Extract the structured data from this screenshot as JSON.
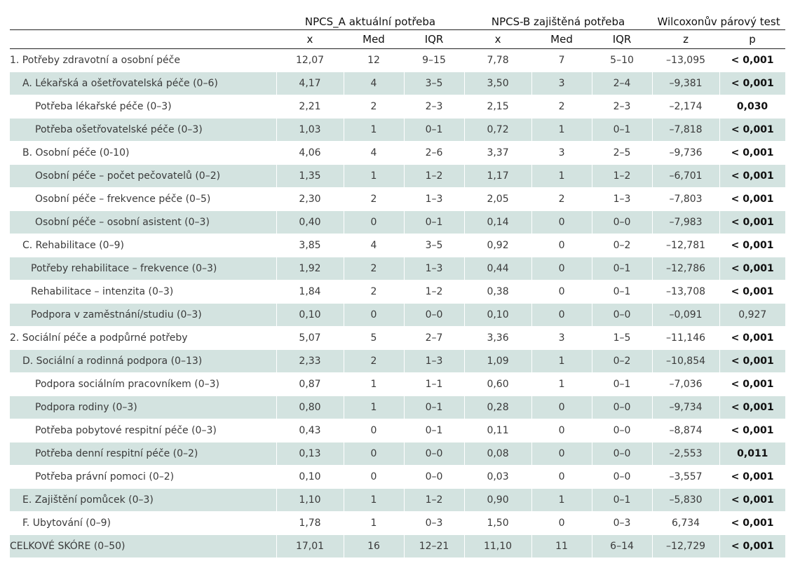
{
  "header": {
    "groups": [
      {
        "label": "NPCS_A  aktuální potřeba"
      },
      {
        "label": "NPCS-B  zajištěná potřeba"
      },
      {
        "label": "Wilcoxonův párový test"
      }
    ],
    "columns": [
      "",
      "x",
      "Med",
      "IQR",
      "x",
      "Med",
      "IQR",
      "z",
      "p"
    ]
  },
  "rows": [
    {
      "label": "1. Potřeby zdravotní a osobní péče",
      "indent": 0,
      "shaded": false,
      "values": [
        "12,07",
        "12",
        "9–15",
        "7,78",
        "7",
        "5–10",
        "–13,095",
        "< 0,001"
      ],
      "p_bold": true
    },
    {
      "label": "A. Lékařská a ošetřovatelská péče (0–6)",
      "indent": 1,
      "shaded": true,
      "values": [
        "4,17",
        "4",
        "3–5",
        "3,50",
        "3",
        "2–4",
        "–9,381",
        "< 0,001"
      ],
      "p_bold": true
    },
    {
      "label": "Potřeba lékařské péče (0–3)",
      "indent": 2,
      "shaded": false,
      "values": [
        "2,21",
        "2",
        "2–3",
        "2,15",
        "2",
        "2–3",
        "–2,174",
        "0,030"
      ],
      "p_bold": true
    },
    {
      "label": "Potřeba ošetřovatelské péče (0–3)",
      "indent": 2,
      "shaded": true,
      "values": [
        "1,03",
        "1",
        "0–1",
        "0,72",
        "1",
        "0–1",
        "–7,818",
        "< 0,001"
      ],
      "p_bold": true
    },
    {
      "label": "B. Osobní péče (0-10)",
      "indent": 1,
      "shaded": false,
      "values": [
        "4,06",
        "4",
        "2–6",
        "3,37",
        "3",
        "2–5",
        "–9,736",
        "< 0,001"
      ],
      "p_bold": true
    },
    {
      "label": "Osobní péče – počet pečovatelů (0–2)",
      "indent": 2,
      "shaded": true,
      "values": [
        "1,35",
        "1",
        "1–2",
        "1,17",
        "1",
        "1–2",
        "–6,701",
        "< 0,001"
      ],
      "p_bold": true
    },
    {
      "label": "Osobní péče – frekvence péče (0–5)",
      "indent": 2,
      "shaded": false,
      "values": [
        "2,30",
        "2",
        "1–3",
        "2,05",
        "2",
        "1–3",
        "–7,803",
        "< 0,001"
      ],
      "p_bold": true
    },
    {
      "label": "Osobní péče – osobní asistent (0–3)",
      "indent": 2,
      "shaded": true,
      "values": [
        "0,40",
        "0",
        "0–1",
        "0,14",
        "0",
        "0–0",
        "–7,983",
        "< 0,001"
      ],
      "p_bold": true
    },
    {
      "label": "C. Rehabilitace (0–9)",
      "indent": 1,
      "shaded": false,
      "values": [
        "3,85",
        "4",
        "3–5",
        "0,92",
        "0",
        "0–2",
        "–12,781",
        "< 0,001"
      ],
      "p_bold": true
    },
    {
      "label": "Potřeby rehabilitace – frekvence (0–3)",
      "indent": 3,
      "shaded": true,
      "values": [
        "1,92",
        "2",
        "1–3",
        "0,44",
        "0",
        "0–1",
        "–12,786",
        "< 0,001"
      ],
      "p_bold": true
    },
    {
      "label": "Rehabilitace – intenzita (0–3)",
      "indent": 3,
      "shaded": false,
      "values": [
        "1,84",
        "2",
        "1–2",
        "0,38",
        "0",
        "0–1",
        "–13,708",
        "< 0,001"
      ],
      "p_bold": true
    },
    {
      "label": "Podpora v zaměstnání/studiu (0–3)",
      "indent": 3,
      "shaded": true,
      "values": [
        "0,10",
        "0",
        "0–0",
        "0,10",
        "0",
        "0–0",
        "–0,091",
        "0,927"
      ],
      "p_bold": false
    },
    {
      "label": "2. Sociální péče a podpůrné potřeby",
      "indent": 0,
      "shaded": false,
      "values": [
        "5,07",
        "5",
        "2–7",
        "3,36",
        "3",
        "1–5",
        "–11,146",
        "< 0,001"
      ],
      "p_bold": true
    },
    {
      "label": "D. Sociální a rodinná podpora (0–13)",
      "indent": 1,
      "shaded": true,
      "values": [
        "2,33",
        "2",
        "1–3",
        "1,09",
        "1",
        "0–2",
        "–10,854",
        "< 0,001"
      ],
      "p_bold": true
    },
    {
      "label": "Podpora sociálním pracovníkem (0–3)",
      "indent": 2,
      "shaded": false,
      "values": [
        "0,87",
        "1",
        "1–1",
        "0,60",
        "1",
        "0–1",
        "–7,036",
        "< 0,001"
      ],
      "p_bold": true
    },
    {
      "label": "Podpora rodiny (0–3)",
      "indent": 2,
      "shaded": true,
      "values": [
        "0,80",
        "1",
        "0–1",
        "0,28",
        "0",
        "0–0",
        "–9,734",
        "< 0,001"
      ],
      "p_bold": true
    },
    {
      "label": "Potřeba pobytové respitní péče (0–3)",
      "indent": 2,
      "shaded": false,
      "values": [
        "0,43",
        "0",
        "0–1",
        "0,11",
        "0",
        "0–0",
        "–8,874",
        "< 0,001"
      ],
      "p_bold": true
    },
    {
      "label": "Potřeba denní respitní péče (0–2)",
      "indent": 2,
      "shaded": true,
      "values": [
        "0,13",
        "0",
        "0–0",
        "0,08",
        "0",
        "0–0",
        "–2,553",
        "0,011"
      ],
      "p_bold": true
    },
    {
      "label": "Potřeba právní pomoci (0–2)",
      "indent": 2,
      "shaded": false,
      "values": [
        "0,10",
        "0",
        "0–0",
        "0,03",
        "0",
        "0–0",
        "–3,557",
        "< 0,001"
      ],
      "p_bold": true
    },
    {
      "label": "E. Zajištění pomůcek (0–3)",
      "indent": 1,
      "shaded": true,
      "values": [
        "1,10",
        "1",
        "1–2",
        "0,90",
        "1",
        "0–1",
        "–5,830",
        "< 0,001"
      ],
      "p_bold": true
    },
    {
      "label": "F. Ubytování (0–9)",
      "indent": 1,
      "shaded": false,
      "values": [
        "1,78",
        "1",
        "0–3",
        "1,50",
        "0",
        "0–3",
        "6,734",
        "< 0,001"
      ],
      "p_bold": true
    },
    {
      "label": "CELKOVÉ SKÓRE (0–50)",
      "indent": 0,
      "shaded": true,
      "values": [
        "17,01",
        "16",
        "12–21",
        "11,10",
        "11",
        "6–14",
        "–12,729",
        "< 0,001"
      ],
      "p_bold": true
    }
  ]
}
